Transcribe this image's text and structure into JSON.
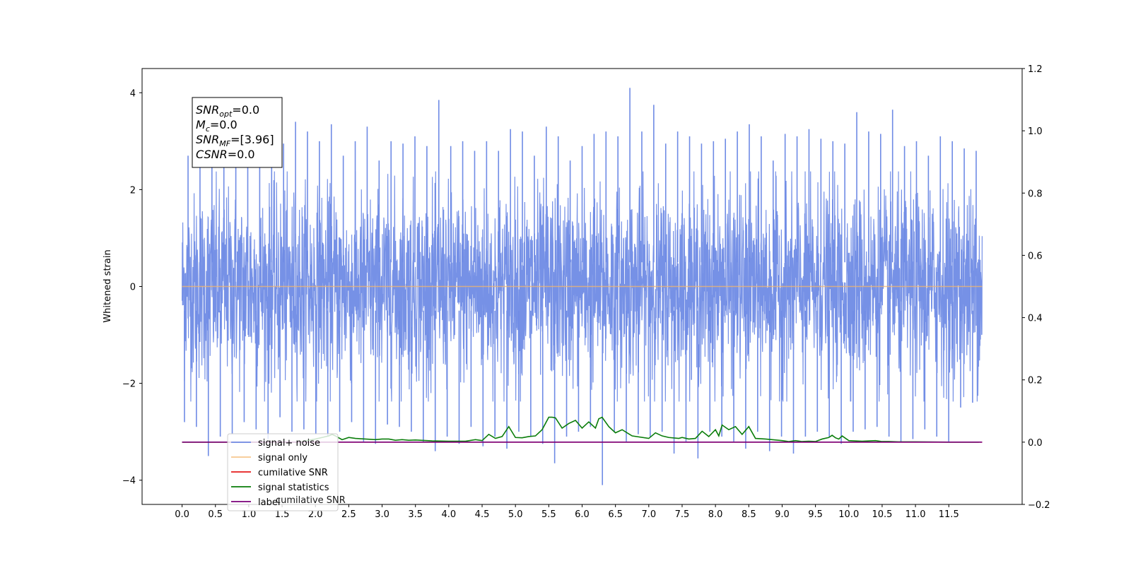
{
  "chart_data": {
    "type": "line",
    "title": "",
    "xlabel": "",
    "ylabel": "Whitened strain",
    "xlim": [
      -0.6,
      12.6
    ],
    "ylim": [
      -4.5,
      4.5
    ],
    "y2lim": [
      -0.2,
      1.2
    ],
    "x_ticks": [
      "0.0",
      "0.5",
      "1.0",
      "1.5",
      "2.0",
      "2.5",
      "3.0",
      "3.5",
      "4.0",
      "4.5",
      "5.0",
      "5.5",
      "6.0",
      "6.5",
      "7.0",
      "7.5",
      "8.0",
      "8.5",
      "9.0",
      "9.5",
      "10.0",
      "10.5",
      "11.0",
      "11.5"
    ],
    "y_ticks": [
      "4",
      "2",
      "0",
      "−2",
      "−4"
    ],
    "y2_ticks": [
      "1.2",
      "1.0",
      "0.8",
      "0.6",
      "0.4",
      "0.2",
      "0.0",
      "−0.2"
    ],
    "grid": false,
    "legend_position": "lower-left",
    "series": [
      {
        "name": "signal+ noise",
        "color": "#6f8be5",
        "axis": "left",
        "x_range": [
          0.0,
          12.0
        ],
        "envelope_upper": [
          2.7,
          2.9,
          3.25,
          2.8,
          2.7,
          2.95,
          2.9,
          3.05,
          2.95,
          3.4,
          3.2,
          3.0,
          3.35,
          2.7,
          3.0,
          3.3,
          2.6,
          3.0,
          2.95,
          3.1,
          2.9,
          3.85,
          2.9,
          3.0,
          2.8,
          3.0,
          2.8,
          3.25,
          3.2,
          2.7,
          3.3,
          3.1,
          2.6,
          2.9,
          3.15,
          3.2,
          3.1,
          4.1,
          3.2,
          3.75,
          2.95,
          3.2,
          3.1,
          2.95,
          3.0,
          3.05,
          3.2,
          3.35,
          3.1,
          2.6,
          3.15,
          3.1,
          3.25,
          3.05,
          3.0,
          2.95,
          3.6,
          3.2,
          3.15,
          3.65,
          2.9,
          3.0,
          2.7,
          3.1,
          3.0,
          2.85,
          2.8
        ],
        "envelope_lower": [
          -2.8,
          -2.9,
          -3.5,
          -3.1,
          -3.05,
          -2.8,
          -2.95,
          -3.15,
          -2.7,
          -3.0,
          -2.95,
          -3.05,
          -3.1,
          -3.0,
          -2.8,
          -3.2,
          -3.25,
          -2.85,
          -2.9,
          -3.0,
          -3.2,
          -3.4,
          -3.1,
          -3.25,
          -2.9,
          -3.3,
          -3.1,
          -3.35,
          -3.0,
          -3.1,
          -3.25,
          -3.65,
          -3.1,
          -3.0,
          -2.9,
          -4.1,
          -3.0,
          -3.2,
          -3.05,
          -3.1,
          -3.0,
          -3.45,
          -3.2,
          -3.55,
          -3.0,
          -3.1,
          -3.2,
          -3.35,
          -3.0,
          -3.4,
          -3.1,
          -3.45,
          -3.1,
          -3.0,
          -3.1,
          -3.25,
          -3.0,
          -2.95,
          -2.9,
          -3.1,
          -3.2,
          -3.15,
          -2.95,
          -3.1,
          -3.2,
          -2.5,
          -2.4
        ],
        "typical_band": [
          -1.9,
          1.9
        ]
      },
      {
        "name": "signal only",
        "color": "#f5b56a",
        "axis": "left",
        "x": [
          0.0,
          12.0
        ],
        "y": [
          0.0,
          0.0
        ]
      },
      {
        "name": "cumilative SNR",
        "color": "#e51b1b",
        "axis": "right",
        "x": [
          0.0,
          12.0
        ],
        "y": [
          0.0,
          0.0
        ]
      },
      {
        "name": "signal statistics",
        "color": "#0a7d0a",
        "axis": "right",
        "x": [
          0.0,
          0.25,
          0.5,
          0.75,
          1.0,
          1.25,
          1.5,
          1.75,
          2.0,
          2.1,
          2.2,
          2.25,
          2.3,
          2.4,
          2.5,
          2.6,
          2.75,
          2.9,
          3.0,
          3.1,
          3.2,
          3.3,
          3.4,
          3.5,
          3.75,
          4.0,
          4.25,
          4.4,
          4.5,
          4.6,
          4.7,
          4.8,
          4.9,
          5.0,
          5.1,
          5.2,
          5.3,
          5.4,
          5.5,
          5.55,
          5.6,
          5.7,
          5.8,
          5.9,
          6.0,
          6.1,
          6.2,
          6.25,
          6.3,
          6.4,
          6.5,
          6.6,
          6.75,
          7.0,
          7.1,
          7.2,
          7.3,
          7.45,
          7.5,
          7.6,
          7.7,
          7.8,
          7.9,
          8.0,
          8.05,
          8.1,
          8.2,
          8.3,
          8.4,
          8.5,
          8.6,
          8.75,
          9.0,
          9.1,
          9.2,
          9.3,
          9.4,
          9.5,
          9.6,
          9.7,
          9.75,
          9.8,
          9.85,
          9.9,
          10.0,
          10.2,
          10.4,
          10.5,
          10.6,
          10.75,
          11.0,
          11.5,
          11.95
        ],
        "y": [
          0.0,
          0.0,
          0.0,
          0.0,
          0.0,
          0.0,
          0.0,
          0.0,
          0.01,
          0.015,
          0.02,
          0.025,
          0.02,
          0.008,
          0.015,
          0.012,
          0.01,
          0.008,
          0.01,
          0.01,
          0.006,
          0.008,
          0.006,
          0.007,
          0.004,
          0.003,
          0.003,
          0.008,
          0.005,
          0.025,
          0.012,
          0.018,
          0.05,
          0.015,
          0.014,
          0.018,
          0.02,
          0.04,
          0.08,
          0.08,
          0.078,
          0.045,
          0.06,
          0.07,
          0.045,
          0.065,
          0.045,
          0.075,
          0.08,
          0.05,
          0.03,
          0.04,
          0.02,
          0.012,
          0.03,
          0.02,
          0.015,
          0.012,
          0.015,
          0.01,
          0.012,
          0.035,
          0.018,
          0.04,
          0.02,
          0.055,
          0.04,
          0.05,
          0.025,
          0.05,
          0.012,
          0.01,
          0.005,
          0.002,
          0.005,
          0.002,
          0.003,
          0.002,
          0.01,
          0.015,
          0.022,
          0.014,
          0.01,
          0.02,
          0.005,
          0.003,
          0.005,
          0.002,
          0.002,
          0.001,
          0.001,
          0.0,
          0.0
        ]
      },
      {
        "name": "label",
        "color": "#7a007a",
        "axis": "right",
        "x": [
          0.0,
          12.0
        ],
        "y": [
          0.0,
          0.0
        ]
      }
    ],
    "annotation": {
      "lines": [
        {
          "sym": "SNR",
          "sub": "opt",
          "text": "=0.0"
        },
        {
          "sym": "M",
          "sub": "c",
          "text": "=0.0"
        },
        {
          "sym": "SNR",
          "sub": "MF",
          "text": "=[3.96]"
        },
        {
          "sym": "CSNR",
          "sub": "",
          "text": "=0.0"
        }
      ]
    },
    "legend_overlap_text": "cumilative SNR"
  }
}
